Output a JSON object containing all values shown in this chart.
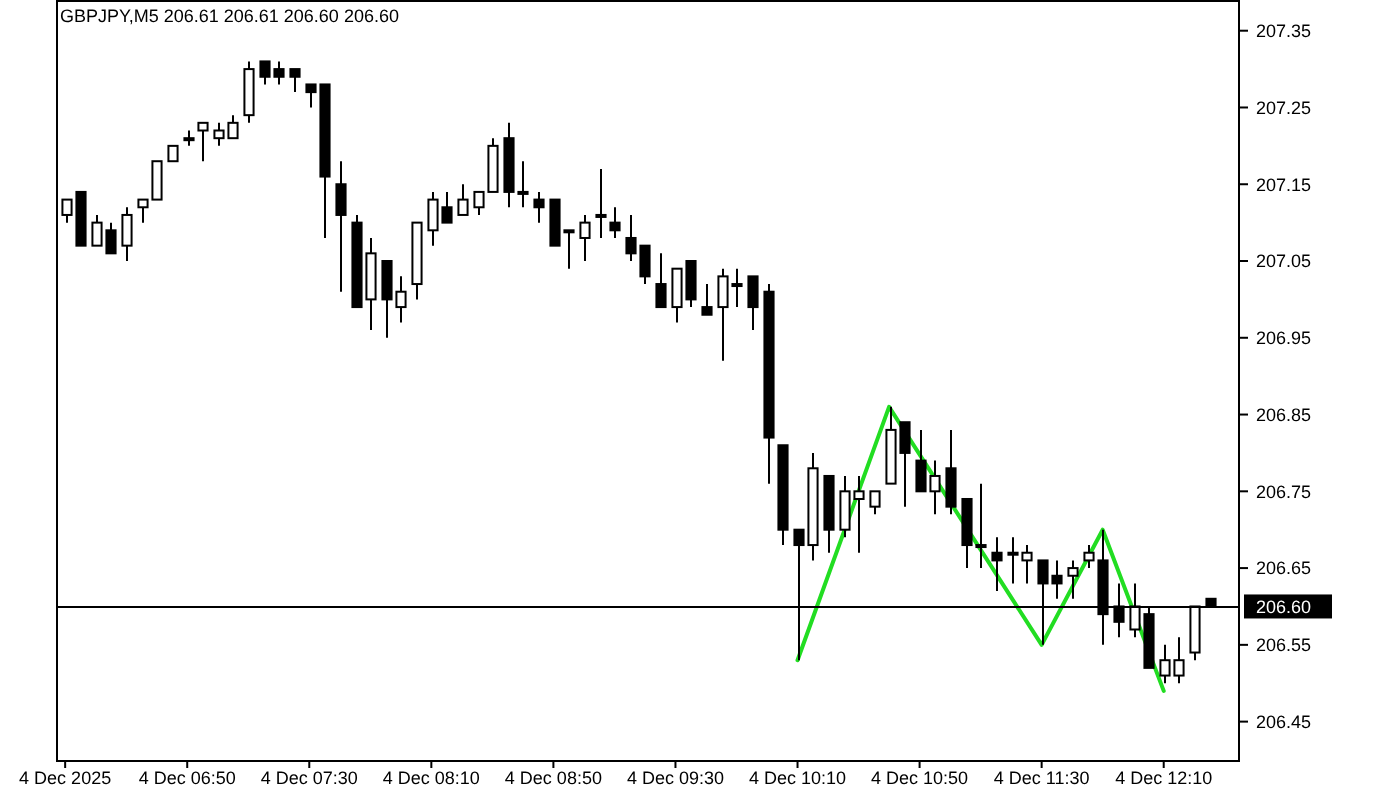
{
  "chart_data": {
    "type": "candlestick",
    "title": "GBPJPY,M5  206.61 206.61 206.60 206.60",
    "color": "#000000",
    "x": [
      "2025-12-04T06:10",
      "2025-12-04T06:15",
      "2025-12-04T06:20",
      "2025-12-04T06:25",
      "2025-12-04T06:30",
      "2025-12-04T06:35",
      "2025-12-04T06:40",
      "2025-12-04T06:45",
      "2025-12-04T06:50",
      "2025-12-04T06:55",
      "2025-12-04T07:00",
      "2025-12-04T07:05",
      "2025-12-04T07:10",
      "2025-12-04T07:15",
      "2025-12-04T07:20",
      "2025-12-04T07:25",
      "2025-12-04T07:30",
      "2025-12-04T07:35",
      "2025-12-04T07:40",
      "2025-12-04T07:45",
      "2025-12-04T07:50",
      "2025-12-04T07:55",
      "2025-12-04T08:00",
      "2025-12-04T08:05",
      "2025-12-04T08:10",
      "2025-12-04T08:15",
      "2025-12-04T08:20",
      "2025-12-04T08:25",
      "2025-12-04T08:30",
      "2025-12-04T08:35",
      "2025-12-04T08:40",
      "2025-12-04T08:45",
      "2025-12-04T08:50",
      "2025-12-04T08:55",
      "2025-12-04T09:00",
      "2025-12-04T09:05",
      "2025-12-04T09:10",
      "2025-12-04T09:15",
      "2025-12-04T09:20",
      "2025-12-04T09:25",
      "2025-12-04T09:30",
      "2025-12-04T09:35",
      "2025-12-04T09:40",
      "2025-12-04T09:45",
      "2025-12-04T09:50",
      "2025-12-04T09:55",
      "2025-12-04T10:00",
      "2025-12-04T10:05",
      "2025-12-04T10:10",
      "2025-12-04T10:15",
      "2025-12-04T10:20",
      "2025-12-04T10:25",
      "2025-12-04T10:30",
      "2025-12-04T10:35",
      "2025-12-04T10:40",
      "2025-12-04T10:45",
      "2025-12-04T10:50",
      "2025-12-04T10:55",
      "2025-12-04T11:00",
      "2025-12-04T11:05",
      "2025-12-04T11:10",
      "2025-12-04T11:15",
      "2025-12-04T11:20",
      "2025-12-04T11:25",
      "2025-12-04T11:30",
      "2025-12-04T11:35",
      "2025-12-04T11:40",
      "2025-12-04T11:45",
      "2025-12-04T11:50",
      "2025-12-04T11:55",
      "2025-12-04T12:00",
      "2025-12-04T12:05",
      "2025-12-04T12:10",
      "2025-12-04T12:15",
      "2025-12-04T12:20",
      "2025-12-04T12:25"
    ],
    "ohlc": [
      [
        207.11,
        207.13,
        207.1,
        207.13
      ],
      [
        207.14,
        207.14,
        207.07,
        207.07
      ],
      [
        207.07,
        207.11,
        207.07,
        207.1
      ],
      [
        207.09,
        207.1,
        207.06,
        207.06
      ],
      [
        207.07,
        207.12,
        207.05,
        207.11
      ],
      [
        207.12,
        207.13,
        207.1,
        207.13
      ],
      [
        207.13,
        207.18,
        207.13,
        207.18
      ],
      [
        207.18,
        207.2,
        207.18,
        207.2
      ],
      [
        207.21,
        207.22,
        207.2,
        207.21
      ],
      [
        207.22,
        207.23,
        207.18,
        207.23
      ],
      [
        207.21,
        207.23,
        207.2,
        207.22
      ],
      [
        207.21,
        207.24,
        207.21,
        207.23
      ],
      [
        207.24,
        207.31,
        207.23,
        207.3
      ],
      [
        207.31,
        207.31,
        207.28,
        207.29
      ],
      [
        207.3,
        207.31,
        207.28,
        207.29
      ],
      [
        207.3,
        207.3,
        207.27,
        207.29
      ],
      [
        207.28,
        207.28,
        207.25,
        207.27
      ],
      [
        207.28,
        207.28,
        207.08,
        207.16
      ],
      [
        207.15,
        207.18,
        207.01,
        207.11
      ],
      [
        207.1,
        207.11,
        206.99,
        206.99
      ],
      [
        207.0,
        207.08,
        206.96,
        207.06
      ],
      [
        207.05,
        207.05,
        206.95,
        207.0
      ],
      [
        206.99,
        207.03,
        206.97,
        207.01
      ],
      [
        207.02,
        207.1,
        207.0,
        207.1
      ],
      [
        207.09,
        207.14,
        207.07,
        207.13
      ],
      [
        207.12,
        207.14,
        207.1,
        207.1
      ],
      [
        207.11,
        207.15,
        207.11,
        207.13
      ],
      [
        207.12,
        207.14,
        207.11,
        207.14
      ],
      [
        207.14,
        207.21,
        207.14,
        207.2
      ],
      [
        207.21,
        207.23,
        207.12,
        207.14
      ],
      [
        207.14,
        207.18,
        207.12,
        207.14
      ],
      [
        207.13,
        207.14,
        207.1,
        207.12
      ],
      [
        207.13,
        207.13,
        207.07,
        207.07
      ],
      [
        207.09,
        207.09,
        207.04,
        207.09
      ],
      [
        207.08,
        207.11,
        207.05,
        207.1
      ],
      [
        207.11,
        207.17,
        207.08,
        207.11
      ],
      [
        207.1,
        207.12,
        207.08,
        207.09
      ],
      [
        207.08,
        207.11,
        207.05,
        207.06
      ],
      [
        207.07,
        207.07,
        207.02,
        207.03
      ],
      [
        207.02,
        207.06,
        206.99,
        206.99
      ],
      [
        206.99,
        207.04,
        206.97,
        207.04
      ],
      [
        207.05,
        207.05,
        206.99,
        207.0
      ],
      [
        206.99,
        207.02,
        206.98,
        206.98
      ],
      [
        206.99,
        207.04,
        206.92,
        207.03
      ],
      [
        207.02,
        207.04,
        206.99,
        207.02
      ],
      [
        207.03,
        207.03,
        206.96,
        206.99
      ],
      [
        207.01,
        207.02,
        206.76,
        206.82
      ],
      [
        206.81,
        206.81,
        206.68,
        206.7
      ],
      [
        206.7,
        206.7,
        206.53,
        206.68
      ],
      [
        206.68,
        206.8,
        206.66,
        206.78
      ],
      [
        206.77,
        206.77,
        206.67,
        206.7
      ],
      [
        206.7,
        206.77,
        206.69,
        206.75
      ],
      [
        206.74,
        206.77,
        206.67,
        206.75
      ],
      [
        206.73,
        206.75,
        206.72,
        206.75
      ],
      [
        206.76,
        206.86,
        206.76,
        206.83
      ],
      [
        206.84,
        206.84,
        206.73,
        206.8
      ],
      [
        206.79,
        206.83,
        206.75,
        206.75
      ],
      [
        206.75,
        206.79,
        206.72,
        206.77
      ],
      [
        206.78,
        206.83,
        206.72,
        206.73
      ],
      [
        206.74,
        206.74,
        206.65,
        206.68
      ],
      [
        206.68,
        206.76,
        206.65,
        206.68
      ],
      [
        206.67,
        206.69,
        206.62,
        206.66
      ],
      [
        206.67,
        206.69,
        206.63,
        206.67
      ],
      [
        206.66,
        206.68,
        206.63,
        206.67
      ],
      [
        206.66,
        206.66,
        206.55,
        206.63
      ],
      [
        206.64,
        206.66,
        206.61,
        206.63
      ],
      [
        206.64,
        206.66,
        206.61,
        206.65
      ],
      [
        206.66,
        206.68,
        206.65,
        206.67
      ],
      [
        206.66,
        206.7,
        206.55,
        206.59
      ],
      [
        206.6,
        206.63,
        206.56,
        206.58
      ],
      [
        206.57,
        206.63,
        206.56,
        206.6
      ],
      [
        206.59,
        206.6,
        206.52,
        206.52
      ],
      [
        206.51,
        206.55,
        206.5,
        206.53
      ],
      [
        206.51,
        206.56,
        206.5,
        206.53
      ],
      [
        206.54,
        206.6,
        206.53,
        206.6
      ],
      [
        206.61,
        206.61,
        206.6,
        206.6
      ]
    ],
    "series": [
      {
        "type": "line",
        "color": "#22dd22",
        "x": [
          "2025-12-04T10:10",
          "2025-12-04T10:40",
          "2025-12-04T11:30",
          "2025-12-04T11:50",
          "2025-12-04T12:10"
        ],
        "values": [
          206.53,
          206.86,
          206.55,
          206.7,
          206.49
        ]
      }
    ],
    "xlim": [
      "2025-12-04T06:07",
      "2025-12-04T12:35"
    ],
    "xticks": [
      {
        "value": "2025-12-04T06:10",
        "label": "4 Dec 2025"
      },
      {
        "value": "2025-12-04T06:50",
        "label": "4 Dec 06:50"
      },
      {
        "value": "2025-12-04T07:30",
        "label": "4 Dec 07:30"
      },
      {
        "value": "2025-12-04T08:10",
        "label": "4 Dec 08:10"
      },
      {
        "value": "2025-12-04T08:50",
        "label": "4 Dec 08:50"
      },
      {
        "value": "2025-12-04T09:30",
        "label": "4 Dec 09:30"
      },
      {
        "value": "2025-12-04T10:10",
        "label": "4 Dec 10:10"
      },
      {
        "value": "2025-12-04T10:50",
        "label": "4 Dec 10:50"
      },
      {
        "value": "2025-12-04T11:30",
        "label": "4 Dec 11:30"
      },
      {
        "value": "2025-12-04T12:10",
        "label": "4 Dec 12:10"
      }
    ],
    "ylim": [
      206.4,
      207.39
    ],
    "yticks": [
      206.45,
      206.55,
      206.65,
      206.75,
      206.85,
      206.95,
      207.05,
      207.15,
      207.25,
      207.35
    ],
    "ref_lines": [
      {
        "axis": "y",
        "value": 206.6,
        "label": "206.60",
        "color": "#000000"
      }
    ]
  }
}
